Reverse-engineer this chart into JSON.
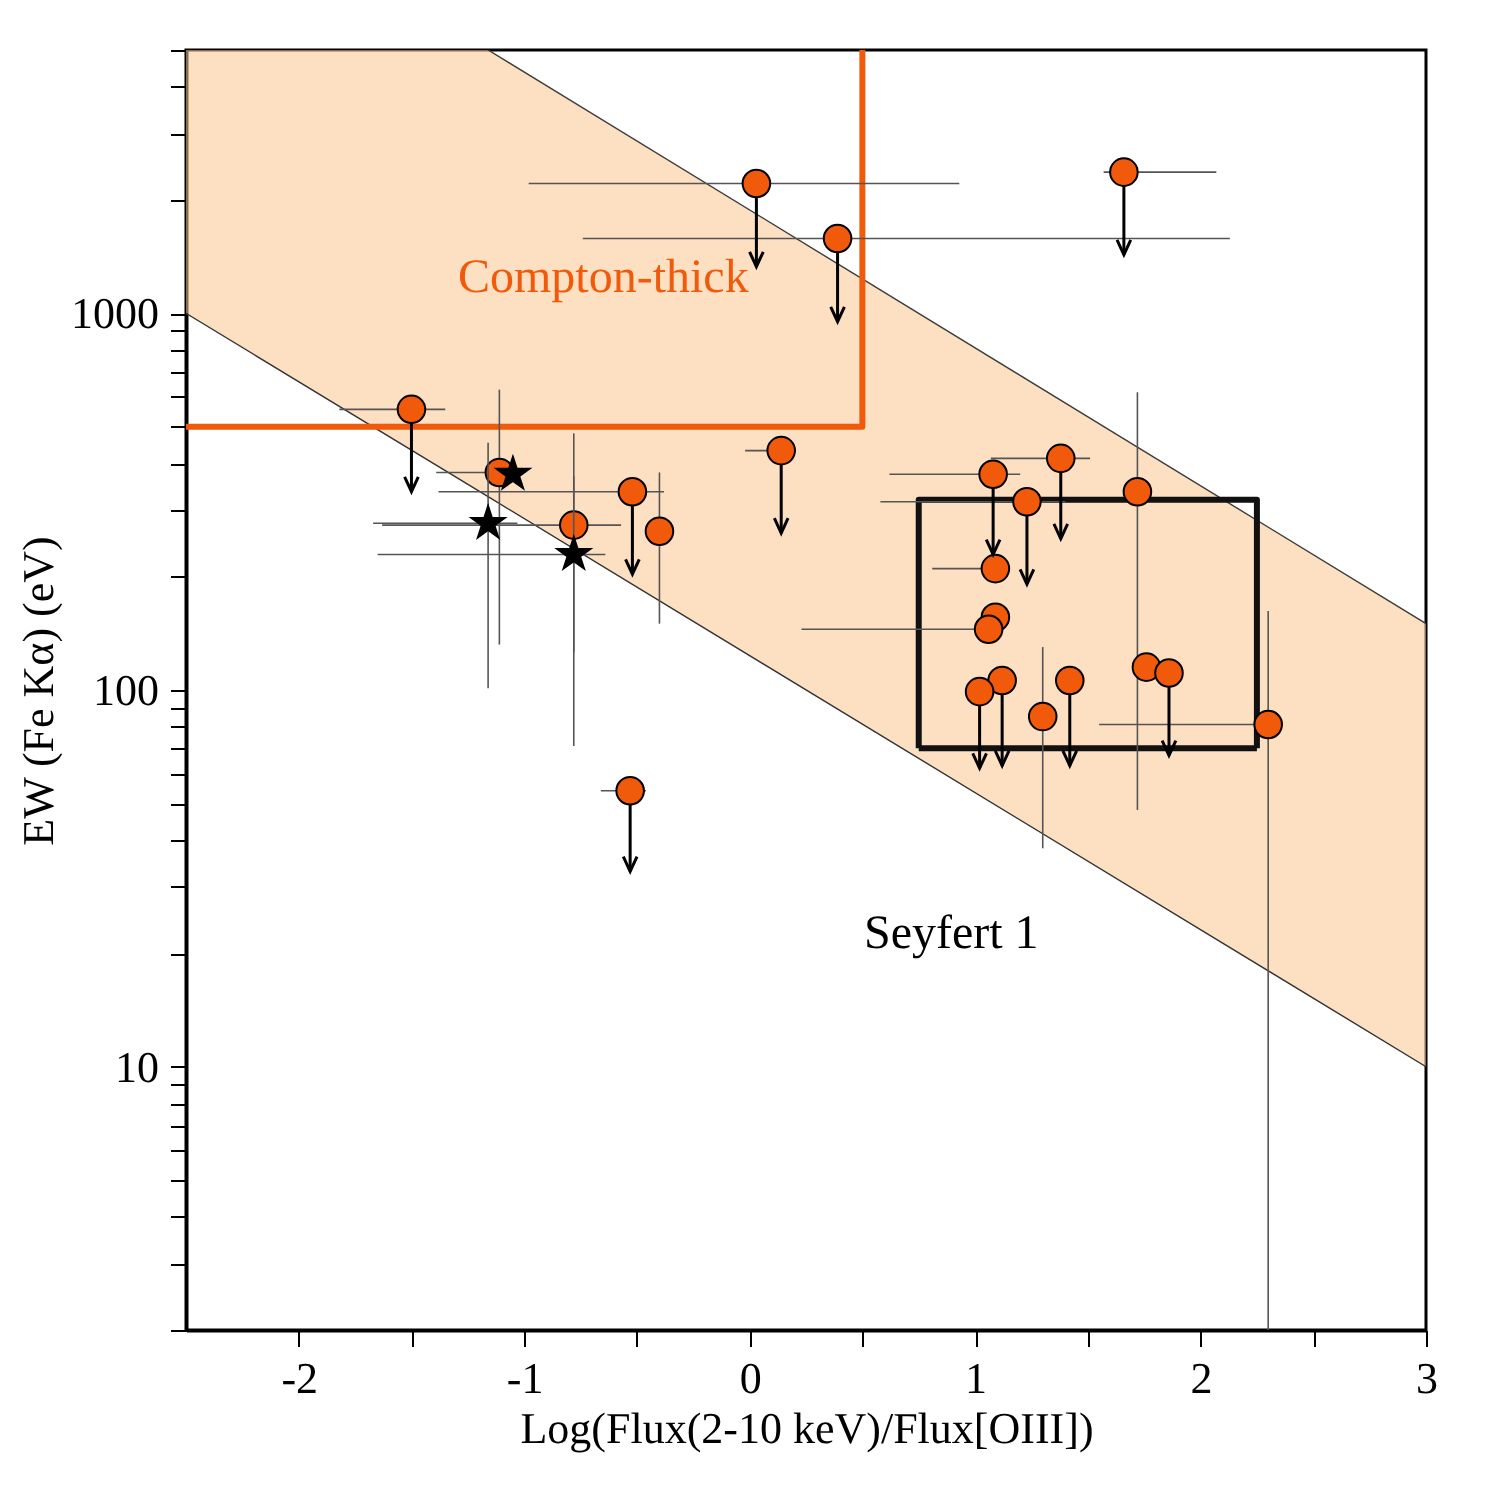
{
  "chart_data": {
    "type": "scatter",
    "xlabel": "Log(Flux(2-10 keV)/Flux[OIII])",
    "ylabel": "EW (Fe Kα) (eV)",
    "log": "y",
    "xlim": [
      -2.5,
      3
    ],
    "ylim": [
      2,
      5000
    ],
    "xticks": [
      -2,
      {
        "value": -1.5,
        "label": null
      },
      -1,
      {
        "value": -0.5,
        "label": null
      },
      0,
      {
        "value": 0.5,
        "label": null
      },
      1,
      {
        "value": 1.5,
        "label": null
      },
      2,
      {
        "value": 2.5,
        "label": null
      },
      3
    ],
    "yticks": [
      {
        "value": 2,
        "label": null
      },
      {
        "value": 3,
        "label": null
      },
      {
        "value": 4,
        "label": null
      },
      {
        "value": 5,
        "label": null
      },
      {
        "value": 6,
        "label": null
      },
      {
        "value": 7,
        "label": null
      },
      {
        "value": 8,
        "label": null
      },
      {
        "value": 9,
        "label": null
      },
      10,
      {
        "value": 20,
        "label": null
      },
      {
        "value": 30,
        "label": null
      },
      {
        "value": 40,
        "label": null
      },
      {
        "value": 50,
        "label": null
      },
      {
        "value": 60,
        "label": null
      },
      {
        "value": 70,
        "label": null
      },
      {
        "value": 80,
        "label": null
      },
      {
        "value": 90,
        "label": null
      },
      100,
      {
        "value": 200,
        "label": null
      },
      {
        "value": 300,
        "label": null
      },
      {
        "value": 400,
        "label": null
      },
      {
        "value": 500,
        "label": null
      },
      {
        "value": 600,
        "label": null
      },
      {
        "value": 700,
        "label": null
      },
      {
        "value": 800,
        "label": null
      },
      {
        "value": 900,
        "label": null
      },
      1000,
      {
        "value": 2000,
        "label": null
      },
      {
        "value": 3000,
        "label": null
      },
      {
        "value": 4000,
        "label": null
      },
      {
        "value": 5000,
        "label": null
      }
    ],
    "grid": false,
    "series": [
      {
        "type": "line",
        "color": "#333333",
        "x": [
          -2.5,
          -1.16,
          3
        ],
        "values": [
          1000,
          326,
          10
        ],
        "lower": [
          1000,
          326,
          10
        ],
        "upper": [
          5000,
          5000,
          150
        ]
      },
      {
        "type": "line",
        "color": "#3c3c3c",
        "x": [
          -1.16,
          3
        ],
        "values": [
          5000,
          150
        ]
      },
      {
        "type": "line",
        "color": "#f05a0a",
        "x": [
          -2.5,
          0.5,
          0.5
        ],
        "values": [
          500,
          500,
          5000
        ]
      },
      {
        "type": "line",
        "color": "#111111",
        "x": [
          0.75,
          0.75,
          2.25,
          2.25
        ],
        "values": [
          70,
          320,
          320,
          70
        ]
      },
      {
        "type": "line",
        "color": "#111111",
        "x": [
          0.75,
          2.25
        ],
        "values": [
          70,
          70
        ]
      },
      {
        "marker": "circle",
        "color": "#f05a0a",
        "x": [
          -1.11,
          -0.78,
          -0.4,
          1.72,
          1.09,
          1.09,
          1.06,
          1.3,
          1.76,
          2.3
        ],
        "values": [
          378,
          274,
          264,
          336,
          210,
          156,
          145,
          85,
          115,
          81
        ],
        "errors": [
          [
            132,
            627
          ],
          [
            126,
            480
          ],
          [
            150,
            378
          ],
          [
            48,
            617
          ],
          null,
          null,
          null,
          [
            38,
            130
          ],
          null,
          [
            2,
            162
          ]
        ],
        "xerrors": [
          [
            -1.39,
            -1.03
          ],
          [
            -1.63,
            -0.57
          ],
          null,
          null,
          [
            0.81,
            1.09
          ],
          null,
          [
            0.23,
            1.06
          ],
          null,
          null,
          [
            1.55,
            2.3
          ]
        ]
      },
      {
        "marker": "circle",
        "color": "#f05a0a",
        "x": [
          -1.5,
          -0.52,
          0.03,
          0.39,
          1.66,
          0.14,
          1.08,
          1.38,
          1.23,
          1.12,
          1.02,
          1.42,
          1.86,
          -0.53
        ],
        "values": [
          556,
          336,
          2210,
          1580,
          2370,
          432,
          374,
          412,
          316,
          106,
          99,
          106,
          111,
          54
        ],
        "errors": [
          [
            336,
            556
          ],
          [
            203,
            336
          ],
          [
            1330,
            2210
          ],
          [
            950,
            1580
          ],
          [
            1430,
            2370
          ],
          [
            261,
            432
          ],
          [
            229,
            374
          ],
          [
            252,
            412
          ],
          [
            191,
            316
          ],
          [
            63,
            106
          ],
          [
            62,
            99
          ],
          [
            63,
            106
          ],
          [
            67,
            111
          ],
          [
            33,
            54
          ]
        ],
        "xerrors": [
          [
            -1.82,
            -1.35
          ],
          [
            -1.38,
            -0.38
          ],
          [
            -0.98,
            0.93
          ],
          [
            -0.74,
            2.13
          ],
          [
            1.57,
            2.07
          ],
          [
            -0.02,
            0.19
          ],
          [
            0.62,
            1.2
          ],
          [
            1.07,
            1.51
          ],
          [
            0.58,
            1.4
          ],
          null,
          null,
          null,
          null,
          [
            -0.66,
            -0.46
          ]
        ]
      },
      {
        "marker": "star",
        "color": "#000000",
        "x": [
          -1.05,
          -1.16,
          -0.78
        ],
        "values": [
          374,
          277,
          229
        ],
        "errors": [
          null,
          [
            101,
            453
          ],
          [
            71,
            370
          ]
        ],
        "xerrors": [
          null,
          [
            -1.67,
            -1.03
          ],
          [
            -1.65,
            -0.64
          ]
        ]
      }
    ],
    "annotations": [
      "Compton-thick",
      "Seyfert 1"
    ]
  }
}
